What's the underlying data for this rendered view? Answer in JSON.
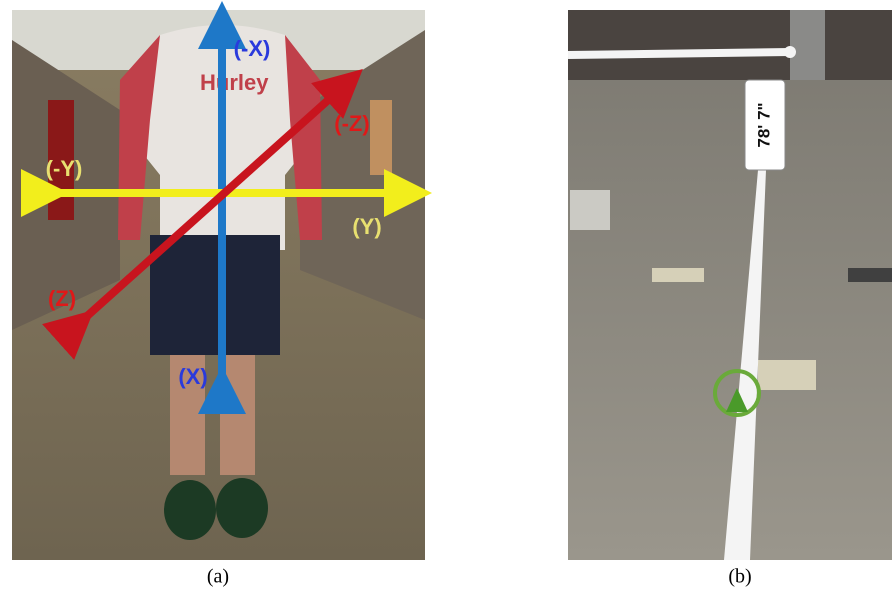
{
  "panels": [
    {
      "caption": "(a)",
      "shirt_text": "Hurley",
      "axis_labels": [
        "(-X)",
        "(X)",
        "(-Y)",
        "(Y)",
        "(-Z)",
        "(Z)"
      ]
    },
    {
      "caption": "(b)",
      "distance_label": "78' 7\""
    }
  ]
}
